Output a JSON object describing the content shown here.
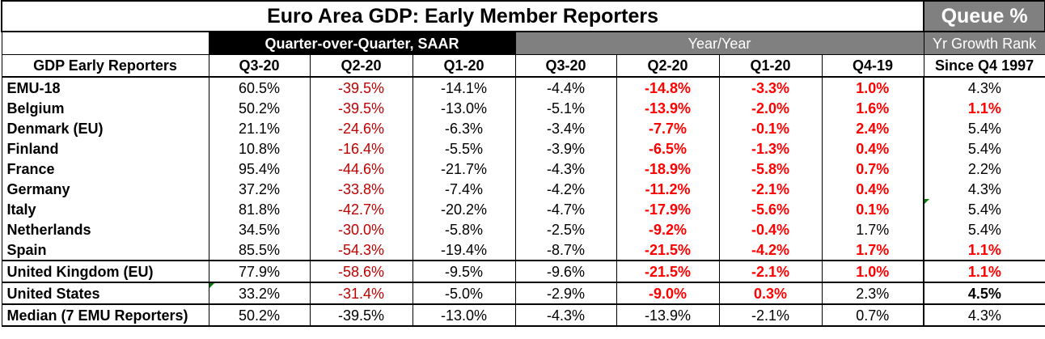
{
  "title": "Euro Area GDP: Early Member Reporters",
  "queue_title": "Queue %",
  "qoq_header": "Quarter-over-Quarter, SAAR",
  "yoy_header": "Year/Year",
  "rank_header": "Yr Growth Rank",
  "col_name_header": "GDP Early Reporters",
  "columns": [
    "Q3-20",
    "Q2-20",
    "Q1-20",
    "Q3-20",
    "Q2-20",
    "Q1-20",
    "Q4-19",
    "Since Q4 1997"
  ],
  "rows": [
    {
      "name": "EMU-18",
      "values": [
        "60.5%",
        "-39.5%",
        "-14.1%",
        "-4.4%",
        "-14.8%",
        "-3.3%",
        "1.0%",
        "4.3%"
      ],
      "styles": [
        "",
        "red",
        "",
        "",
        "bred",
        "bred",
        "bred",
        ""
      ]
    },
    {
      "name": "Belgium",
      "values": [
        "50.2%",
        "-39.5%",
        "-13.0%",
        "-5.1%",
        "-13.9%",
        "-2.0%",
        "1.6%",
        "1.1%"
      ],
      "styles": [
        "",
        "red",
        "",
        "",
        "bred",
        "bred",
        "bred",
        "bred"
      ]
    },
    {
      "name": "Denmark (EU)",
      "values": [
        "21.1%",
        "-24.6%",
        "-6.3%",
        "-3.4%",
        "-7.7%",
        "-0.1%",
        "2.4%",
        "5.4%"
      ],
      "styles": [
        "",
        "red",
        "",
        "",
        "bred",
        "bred",
        "bred",
        ""
      ]
    },
    {
      "name": "Finland",
      "values": [
        "10.8%",
        "-16.4%",
        "-5.5%",
        "-3.9%",
        "-6.5%",
        "-1.3%",
        "0.4%",
        "5.4%"
      ],
      "styles": [
        "",
        "red",
        "",
        "",
        "bred",
        "bred",
        "bred",
        ""
      ]
    },
    {
      "name": "France",
      "values": [
        "95.4%",
        "-44.6%",
        "-21.7%",
        "-4.3%",
        "-18.9%",
        "-5.8%",
        "0.7%",
        "2.2%"
      ],
      "styles": [
        "",
        "red",
        "",
        "",
        "bred",
        "bred",
        "bred",
        ""
      ]
    },
    {
      "name": "Germany",
      "values": [
        "37.2%",
        "-33.8%",
        "-7.4%",
        "-4.2%",
        "-11.2%",
        "-2.1%",
        "0.4%",
        "4.3%"
      ],
      "styles": [
        "",
        "red",
        "",
        "",
        "bred",
        "bred",
        "bred",
        ""
      ]
    },
    {
      "name": "Italy",
      "values": [
        "81.8%",
        "-42.7%",
        "-20.2%",
        "-4.7%",
        "-17.9%",
        "-5.6%",
        "0.1%",
        "5.4%"
      ],
      "styles": [
        "",
        "red",
        "",
        "",
        "bred",
        "bred",
        "bred",
        ""
      ]
    },
    {
      "name": "Netherlands",
      "values": [
        "34.5%",
        "-30.0%",
        "-5.8%",
        "-2.5%",
        "-9.2%",
        "-0.4%",
        "1.7%",
        "5.4%"
      ],
      "styles": [
        "",
        "red",
        "",
        "",
        "bred",
        "bred",
        "",
        ""
      ]
    },
    {
      "name": "Spain",
      "values": [
        "85.5%",
        "-54.3%",
        "-19.4%",
        "-8.7%",
        "-21.5%",
        "-4.2%",
        "1.7%",
        "1.1%"
      ],
      "styles": [
        "",
        "red",
        "",
        "",
        "bred",
        "bred",
        "bred",
        "bred"
      ]
    },
    {
      "name": "United Kingdom (EU)",
      "values": [
        "77.9%",
        "-58.6%",
        "-9.5%",
        "-9.6%",
        "-21.5%",
        "-2.1%",
        "1.0%",
        "1.1%"
      ],
      "styles": [
        "",
        "red",
        "",
        "",
        "bred",
        "bred",
        "bred",
        "bred"
      ]
    },
    {
      "name": "United States",
      "values": [
        "33.2%",
        "-31.4%",
        "-5.0%",
        "-2.9%",
        "-9.0%",
        "0.3%",
        "2.3%",
        "4.5%"
      ],
      "styles": [
        "",
        "red",
        "",
        "",
        "bred",
        "bred",
        "",
        "bold"
      ]
    },
    {
      "name": "Median (7 EMU Reporters)",
      "values": [
        "50.2%",
        "-39.5%",
        "-13.0%",
        "-4.3%",
        "-13.9%",
        "-2.1%",
        "0.7%",
        "4.3%"
      ],
      "styles": [
        "",
        "",
        "",
        "",
        "",
        "",
        "",
        ""
      ]
    }
  ],
  "colors": {
    "header_black": "#000000",
    "header_gray": "#808080",
    "negative_red": "#c00000",
    "highlight_red": "#ff0000",
    "comment_marker": "#008000"
  }
}
